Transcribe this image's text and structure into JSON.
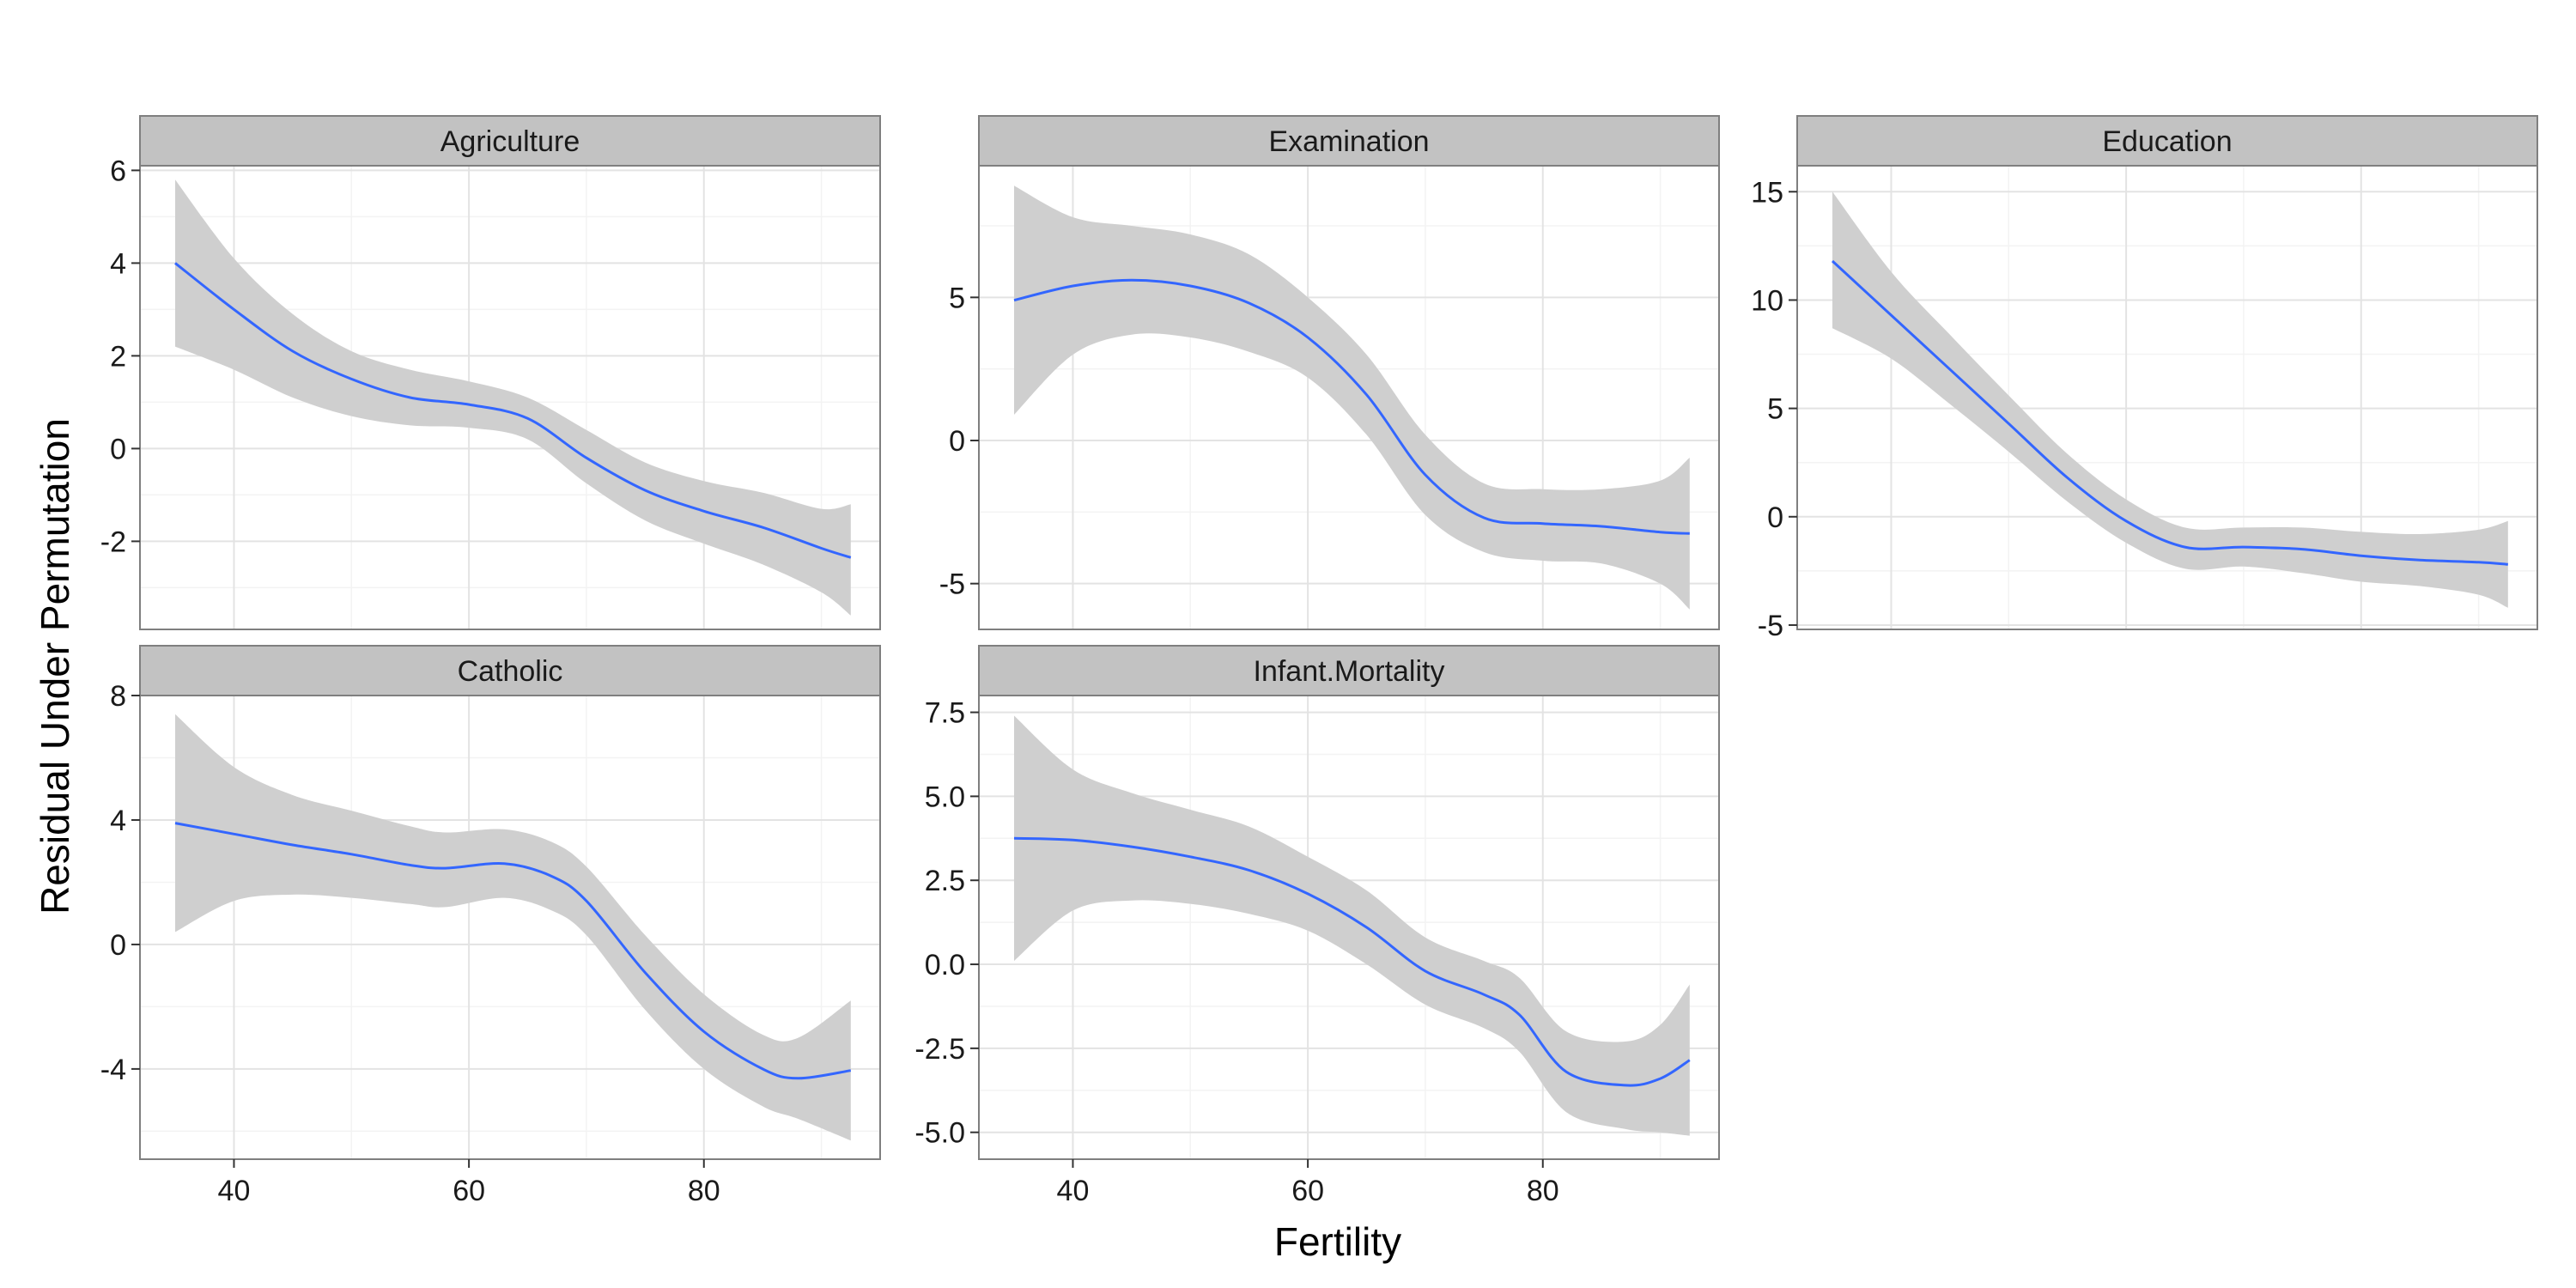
{
  "figure": {
    "ylabel": "Residual Under Permutation",
    "xlabel": "Fertility"
  },
  "colors": {
    "background": "#ffffff",
    "strip_fill": "#c2c2c2",
    "ribbon_fill": "#cfcfcf",
    "line": "#3366ff",
    "grid_major": "#e3e3e3",
    "grid_minor": "#f3f3f3",
    "panel_border": "#7f7f7f"
  },
  "chart_data": [
    {
      "type": "line",
      "panel": "Agriculture",
      "xlim": [
        32,
        95
      ],
      "ylim": [
        -3.9,
        6.1
      ],
      "x_ticks": [
        40,
        60,
        80
      ],
      "x_tick_labels": [],
      "y_ticks": [
        -2,
        0,
        2,
        4,
        6
      ],
      "y_tick_labels": [
        "-2",
        "0",
        "2",
        "4",
        "6"
      ],
      "grid": true,
      "series": [
        {
          "x": [
            35,
            40,
            45,
            50,
            55,
            60,
            65,
            70,
            75,
            80,
            85,
            90,
            92.5
          ],
          "y": [
            4.0,
            3.0,
            2.1,
            1.5,
            1.1,
            0.95,
            0.65,
            -0.2,
            -0.9,
            -1.35,
            -1.7,
            -2.15,
            -2.35
          ],
          "lower": [
            2.2,
            1.7,
            1.1,
            0.7,
            0.5,
            0.45,
            0.2,
            -0.75,
            -1.55,
            -2.05,
            -2.5,
            -3.1,
            -3.6
          ],
          "upper": [
            5.8,
            4.1,
            2.9,
            2.1,
            1.7,
            1.45,
            1.1,
            0.4,
            -0.3,
            -0.7,
            -0.95,
            -1.3,
            -1.2
          ]
        }
      ]
    },
    {
      "type": "line",
      "panel": "Examination",
      "xlim": [
        32,
        95
      ],
      "ylim": [
        -6.6,
        9.6
      ],
      "x_ticks": [
        40,
        60,
        80
      ],
      "x_tick_labels": [],
      "y_ticks": [
        -5,
        0,
        5
      ],
      "y_tick_labels": [
        "-5",
        "0",
        "5"
      ],
      "grid": true,
      "series": [
        {
          "x": [
            35,
            40,
            45,
            50,
            55,
            60,
            65,
            70,
            75,
            80,
            85,
            90,
            92.5
          ],
          "y": [
            4.9,
            5.4,
            5.6,
            5.4,
            4.8,
            3.6,
            1.6,
            -1.2,
            -2.7,
            -2.9,
            -3.0,
            -3.2,
            -3.25
          ],
          "lower": [
            0.9,
            3.0,
            3.7,
            3.6,
            3.1,
            2.2,
            0.2,
            -2.6,
            -3.9,
            -4.2,
            -4.3,
            -5.0,
            -5.9
          ],
          "upper": [
            8.9,
            7.8,
            7.5,
            7.2,
            6.5,
            5.0,
            3.0,
            0.2,
            -1.5,
            -1.7,
            -1.7,
            -1.4,
            -0.6
          ]
        }
      ]
    },
    {
      "type": "line",
      "panel": "Education",
      "xlim": [
        32,
        95
      ],
      "ylim": [
        -5.2,
        16.2
      ],
      "x_ticks": [
        40,
        60,
        80
      ],
      "x_tick_labels": [],
      "y_ticks": [
        -5,
        0,
        5,
        10,
        15
      ],
      "y_tick_labels": [
        "-5",
        "0",
        "5",
        "10",
        "15"
      ],
      "grid": true,
      "series": [
        {
          "x": [
            35,
            40,
            45,
            50,
            55,
            60,
            65,
            70,
            75,
            80,
            85,
            90,
            92.5
          ],
          "y": [
            11.8,
            9.3,
            6.8,
            4.3,
            1.8,
            -0.2,
            -1.4,
            -1.4,
            -1.5,
            -1.8,
            -2.0,
            -2.1,
            -2.2
          ],
          "lower": [
            8.7,
            7.3,
            5.2,
            3.0,
            0.7,
            -1.2,
            -2.4,
            -2.3,
            -2.6,
            -3.0,
            -3.2,
            -3.6,
            -4.2
          ],
          "upper": [
            15.0,
            11.3,
            8.4,
            5.6,
            2.9,
            0.8,
            -0.5,
            -0.5,
            -0.5,
            -0.7,
            -0.8,
            -0.6,
            -0.2
          ]
        }
      ]
    },
    {
      "type": "line",
      "panel": "Catholic",
      "xlim": [
        32,
        95
      ],
      "ylim": [
        -6.9,
        8.0
      ],
      "x_ticks": [
        40,
        60,
        80
      ],
      "x_tick_labels": [
        "40",
        "60",
        "80"
      ],
      "y_ticks": [
        -4,
        0,
        4,
        8
      ],
      "y_tick_labels": [
        "-4",
        "0",
        "4",
        "8"
      ],
      "grid": true,
      "series": [
        {
          "x": [
            35,
            40,
            45,
            50,
            55,
            58,
            63,
            67,
            70,
            75,
            80,
            85,
            88,
            92.5
          ],
          "y": [
            3.9,
            3.55,
            3.2,
            2.9,
            2.55,
            2.45,
            2.6,
            2.2,
            1.4,
            -0.9,
            -2.8,
            -4.0,
            -4.3,
            -4.05
          ],
          "lower": [
            0.4,
            1.4,
            1.6,
            1.5,
            1.3,
            1.2,
            1.5,
            1.1,
            0.3,
            -2.1,
            -4.0,
            -5.2,
            -5.6,
            -6.3
          ],
          "upper": [
            7.4,
            5.7,
            4.8,
            4.3,
            3.8,
            3.6,
            3.7,
            3.3,
            2.5,
            0.3,
            -1.6,
            -2.9,
            -3.0,
            -1.8
          ]
        }
      ]
    },
    {
      "type": "line",
      "panel": "Infant.Mortality",
      "xlim": [
        32,
        95
      ],
      "ylim": [
        -5.8,
        8.0
      ],
      "x_ticks": [
        40,
        60,
        80
      ],
      "x_tick_labels": [
        "40",
        "60",
        "80"
      ],
      "y_ticks": [
        -5.0,
        -2.5,
        0.0,
        2.5,
        5.0,
        7.5
      ],
      "y_tick_labels": [
        "-5.0",
        "-2.5",
        "0.0",
        "2.5",
        "5.0",
        "7.5"
      ],
      "grid": true,
      "series": [
        {
          "x": [
            35,
            40,
            45,
            50,
            55,
            60,
            65,
            70,
            75,
            78,
            82,
            87,
            90,
            92.5
          ],
          "y": [
            3.75,
            3.7,
            3.5,
            3.2,
            2.8,
            2.1,
            1.1,
            -0.2,
            -0.9,
            -1.5,
            -3.2,
            -3.6,
            -3.4,
            -2.85
          ],
          "lower": [
            0.1,
            1.6,
            1.9,
            1.8,
            1.5,
            1.0,
            0.0,
            -1.2,
            -1.9,
            -2.6,
            -4.4,
            -4.9,
            -5.0,
            -5.1
          ],
          "upper": [
            7.4,
            5.8,
            5.1,
            4.6,
            4.1,
            3.2,
            2.2,
            0.8,
            0.1,
            -0.4,
            -2.0,
            -2.3,
            -1.8,
            -0.6
          ]
        }
      ]
    }
  ]
}
